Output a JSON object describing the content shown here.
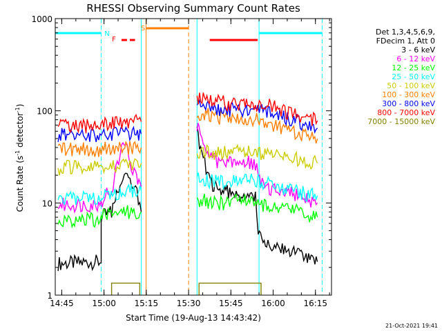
{
  "chart_data": {
    "type": "line",
    "title": "RHESSI Observing Summary Count Rates",
    "xlabel": "Start Time (19-Aug-13 14:43:42)",
    "ylabel_prefix": "Count Rate (s",
    "ylabel_sup1": "-1",
    "ylabel_mid": " detector",
    "ylabel_sup2": "-1",
    "ylabel_suffix": ")",
    "x_ticks": [
      "14:45",
      "15:00",
      "15:15",
      "15:30",
      "15:45",
      "16:00",
      "16:15"
    ],
    "y_ticks": [
      "1",
      "10",
      "100",
      "1000"
    ],
    "y_scale": "log",
    "ylim": [
      1,
      1000
    ],
    "xlim_minutes_after_14_43_42": [
      -1,
      97
    ],
    "grid": false,
    "legend_header": [
      "Det 1,3,4,5,6,9,",
      "FDecim 1, Att 0"
    ],
    "legend_placement": "right",
    "timestamp": "21-Oct-2021 19:41",
    "markers": {
      "N": "N",
      "F": "F",
      "S": "S"
    },
    "series": [
      {
        "name": "3 - 6 keV",
        "color": "#000000",
        "segments": [
          [
            [
              0,
              2.2
            ],
            [
              15.3,
              2.3
            ],
            [
              15.3,
              7
            ],
            [
              19,
              8
            ],
            [
              22,
              16
            ],
            [
              24,
              22
            ],
            [
              26,
              18
            ],
            [
              28,
              12
            ],
            [
              29.5,
              8
            ]
          ],
          [
            [
              49.3,
              60
            ],
            [
              51,
              35
            ],
            [
              53,
              22
            ],
            [
              54,
              17
            ],
            [
              57,
              14
            ],
            [
              60,
              13
            ],
            [
              65,
              12
            ],
            [
              70,
              12
            ],
            [
              71,
              5
            ],
            [
              74,
              3.5
            ],
            [
              80,
              3
            ],
            [
              85,
              2.8
            ],
            [
              88,
              2.4
            ],
            [
              92,
              2.3
            ]
          ]
        ]
      },
      {
        "name": "6 - 12 keV",
        "color": "#ff00ff",
        "segments": [
          [
            [
              0,
              9.5
            ],
            [
              15.3,
              9.6
            ],
            [
              16,
              12
            ],
            [
              19,
              14
            ],
            [
              21,
              25
            ],
            [
              23,
              40
            ],
            [
              24,
              44
            ],
            [
              25,
              32
            ],
            [
              27,
              22
            ],
            [
              29.5,
              15
            ]
          ],
          [
            [
              49.3,
              68
            ],
            [
              50,
              65
            ],
            [
              52,
              45
            ],
            [
              53,
              34
            ],
            [
              56,
              28
            ],
            [
              60,
              27
            ],
            [
              64,
              27
            ],
            [
              68,
              28
            ],
            [
              70,
              26
            ],
            [
              71,
              22
            ],
            [
              72,
              17
            ],
            [
              75,
              14
            ],
            [
              80,
              13
            ],
            [
              85,
              12
            ],
            [
              92,
              10
            ]
          ]
        ]
      },
      {
        "name": "12 - 25 keV",
        "color": "#00ff00",
        "segments": [
          [
            [
              0,
              6.5
            ],
            [
              15.3,
              6.6
            ],
            [
              16,
              7.5
            ],
            [
              22,
              8
            ],
            [
              29.5,
              8
            ]
          ],
          [
            [
              49.3,
              11
            ],
            [
              55,
              10
            ],
            [
              60,
              10
            ],
            [
              65,
              10.5
            ],
            [
              68,
              11
            ],
            [
              70,
              10
            ],
            [
              75,
              9
            ],
            [
              80,
              8.5
            ],
            [
              85,
              8
            ],
            [
              92,
              7
            ]
          ]
        ]
      },
      {
        "name": "25 - 50 keV",
        "color": "#00ffff",
        "segments": [
          [
            [
              0,
              11
            ],
            [
              15.3,
              11.5
            ],
            [
              22,
              13
            ],
            [
              29.5,
              13.5
            ]
          ],
          [
            [
              49.3,
              19
            ],
            [
              55,
              17
            ],
            [
              60,
              17
            ],
            [
              65,
              18
            ],
            [
              68,
              19
            ],
            [
              70,
              18
            ],
            [
              75,
              16
            ],
            [
              80,
              14
            ],
            [
              85,
              13
            ],
            [
              92,
              12
            ]
          ]
        ]
      },
      {
        "name": "50 - 100 keV",
        "color": "#cccc00",
        "segments": [
          [
            [
              0,
              24
            ],
            [
              15.3,
              24.5
            ],
            [
              20,
              26
            ],
            [
              29.5,
              27
            ]
          ],
          [
            [
              49.3,
              37
            ],
            [
              55,
              34
            ],
            [
              60,
              35
            ],
            [
              65,
              37
            ],
            [
              68,
              38
            ],
            [
              72,
              35
            ],
            [
              78,
              32
            ],
            [
              85,
              30
            ],
            [
              92,
              27
            ]
          ]
        ]
      },
      {
        "name": "100 - 300 keV",
        "color": "#ff8000",
        "segments": [
          [
            [
              0,
              38
            ],
            [
              15.3,
              38
            ],
            [
              20,
              40
            ],
            [
              29.5,
              40
            ]
          ],
          [
            [
              49.3,
              95
            ],
            [
              55,
              87
            ],
            [
              60,
              83
            ],
            [
              65,
              82
            ],
            [
              70,
              80
            ],
            [
              75,
              72
            ],
            [
              80,
              62
            ],
            [
              85,
              56
            ],
            [
              92,
              50
            ]
          ]
        ]
      },
      {
        "name": "300 - 800 keV",
        "color": "#0000ff",
        "segments": [
          [
            [
              0,
              54
            ],
            [
              15.3,
              54
            ],
            [
              20,
              56
            ],
            [
              29.5,
              56
            ]
          ],
          [
            [
              49.3,
              120
            ],
            [
              55,
              108
            ],
            [
              60,
              103
            ],
            [
              65,
              103
            ],
            [
              70,
              105
            ],
            [
              75,
              95
            ],
            [
              80,
              85
            ],
            [
              85,
              76
            ],
            [
              92,
              65
            ]
          ]
        ]
      },
      {
        "name": "800 - 7000 keV",
        "color": "#ff0000",
        "segments": [
          [
            [
              0,
              68
            ],
            [
              15.3,
              68
            ],
            [
              18,
              75
            ],
            [
              29.5,
              76
            ]
          ],
          [
            [
              49.3,
              140
            ],
            [
              55,
              128
            ],
            [
              60,
              120
            ],
            [
              65,
              118
            ],
            [
              70,
              120
            ],
            [
              75,
              112
            ],
            [
              80,
              100
            ],
            [
              85,
              90
            ],
            [
              92,
              78
            ]
          ]
        ]
      },
      {
        "name": "7000 - 15000 keV",
        "color": "#808000",
        "segments": [
          [
            [
              19,
              1
            ],
            [
              19,
              1.35
            ],
            [
              29,
              1.35
            ],
            [
              29,
              1
            ]
          ],
          [
            [
              50,
              1
            ],
            [
              50,
              1.35
            ],
            [
              72,
              1.35
            ],
            [
              72,
              1
            ]
          ]
        ]
      }
    ],
    "vertical_lines": [
      {
        "x": 15.3,
        "color": "#00ffff",
        "style": "dashed"
      },
      {
        "x": 29.5,
        "color": "#00ffff",
        "style": "solid"
      },
      {
        "x": 31.2,
        "color": "#ff8000",
        "style": "solid"
      },
      {
        "x": 46.3,
        "color": "#ff8000",
        "style": "dashed"
      },
      {
        "x": 49.3,
        "color": "#00ffff",
        "style": "solid"
      },
      {
        "x": 71.3,
        "color": "#00ffff",
        "style": "solid"
      },
      {
        "x": 93.7,
        "color": "#00ffff",
        "style": "dashed"
      }
    ],
    "status_bars": [
      {
        "label": "night",
        "color": "#00ffff",
        "style": "solid",
        "x0": -1,
        "x1": 15.3
      },
      {
        "label": "night",
        "color": "#00ffff",
        "style": "solid",
        "x0": 71.3,
        "x1": 93.7
      },
      {
        "label": "saa",
        "color": "#ff8000",
        "style": "solid",
        "x0": 31.2,
        "x1": 46.3
      },
      {
        "label": "flare",
        "color": "#ff0000",
        "style": "dashed",
        "x0": 22.5,
        "x1": 27.3
      },
      {
        "label": "flare",
        "color": "#ff0000",
        "style": "solid",
        "x0": 53.8,
        "x1": 70.8
      }
    ]
  }
}
